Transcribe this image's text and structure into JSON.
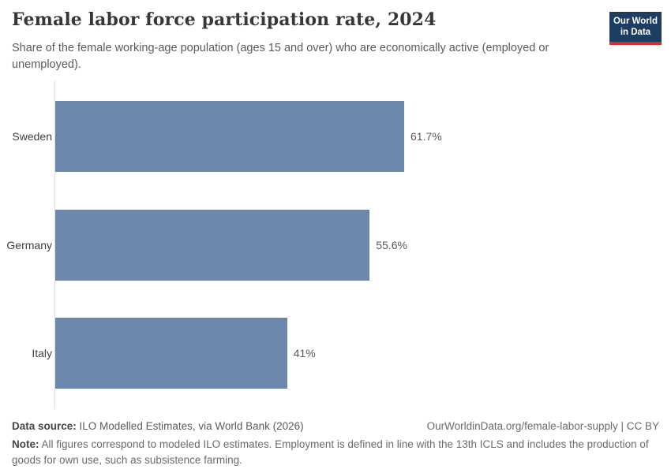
{
  "header": {
    "title": "Female labor force participation rate, 2024",
    "subtitle": "Share of the female working-age population (ages 15 and over) who are economically active (employed or unemployed).",
    "logo": {
      "line1": "Our World",
      "line2": "in Data"
    }
  },
  "chart_data": {
    "type": "bar",
    "orientation": "horizontal",
    "title": "Female labor force participation rate, 2024",
    "categories": [
      "Sweden",
      "Germany",
      "Italy"
    ],
    "values": [
      61.7,
      55.6,
      41
    ],
    "value_labels": [
      "61.7%",
      "55.6%",
      "41%"
    ],
    "unit": "%",
    "xlabel": "",
    "ylabel": "",
    "xlim": [
      0,
      61.7
    ],
    "grid": false,
    "legend": "none",
    "bar_color": "#6c86ae",
    "axis_line_color": "#dcdcdc"
  },
  "footer": {
    "source_label": "Data source:",
    "source_text": " ILO Modelled Estimates, via World Bank (2026)",
    "link_text": "OurWorldinData.org/female-labor-supply | CC BY",
    "note_label": "Note:",
    "note_text": " All figures correspond to modeled ILO estimates. Employment is defined in line with the 13th ICLS and includes the production of goods for own use, such as subsistence farming."
  },
  "colors": {
    "logo_navy": "#1d3d63",
    "logo_red": "#cb342c",
    "title_text": "#373737",
    "subtitle_text": "#5b5b5b"
  }
}
